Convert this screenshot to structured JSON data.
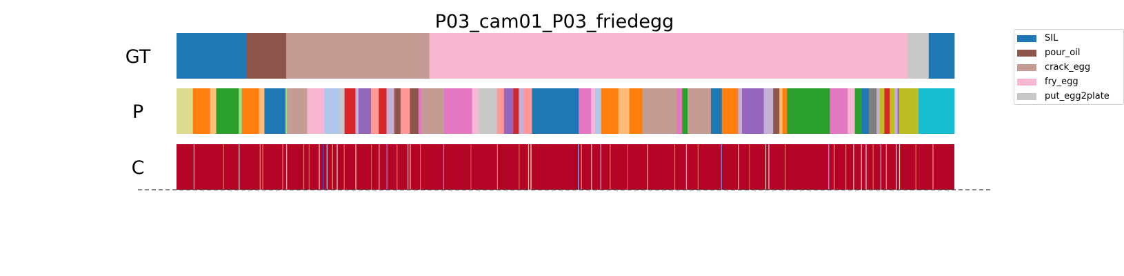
{
  "chart_data": {
    "type": "segmentation_timeline",
    "title": "P03_cam01_P03_friedegg",
    "x_range": [
      0,
      1000
    ],
    "rows": [
      {
        "label": "GT",
        "segments": [
          {
            "start": 0,
            "end": 90,
            "label": "SIL"
          },
          {
            "start": 90,
            "end": 141,
            "label": "pour_oil"
          },
          {
            "start": 141,
            "end": 325,
            "label": "crack_egg"
          },
          {
            "start": 325,
            "end": 940,
            "label": "fry_egg"
          },
          {
            "start": 940,
            "end": 967,
            "label": "put_egg2plate"
          },
          {
            "start": 967,
            "end": 1000,
            "label": "SIL"
          }
        ]
      },
      {
        "label": "P",
        "segments": [
          {
            "start": 0,
            "end": 21,
            "color": "#dbdb8d"
          },
          {
            "start": 21,
            "end": 43,
            "color": "#ff7f0e"
          },
          {
            "start": 43,
            "end": 51,
            "color": "#ffbb78"
          },
          {
            "start": 51,
            "end": 80,
            "color": "#2ca02c"
          },
          {
            "start": 80,
            "end": 84,
            "color": "#98df8a"
          },
          {
            "start": 84,
            "end": 106,
            "color": "#ff7f0e"
          },
          {
            "start": 106,
            "end": 113,
            "color": "#ffbb78"
          },
          {
            "start": 113,
            "end": 140,
            "color": "#1f77b4"
          },
          {
            "start": 140,
            "end": 142,
            "color": "#98df8a"
          },
          {
            "start": 142,
            "end": 168,
            "color": "#c49c94"
          },
          {
            "start": 168,
            "end": 190,
            "color": "#f7b6d2"
          },
          {
            "start": 190,
            "end": 210,
            "color": "#aec7e8"
          },
          {
            "start": 210,
            "end": 216,
            "color": "#c7c7c7"
          },
          {
            "start": 216,
            "end": 230,
            "color": "#d62728"
          },
          {
            "start": 230,
            "end": 234,
            "color": "#c5b0d5"
          },
          {
            "start": 234,
            "end": 250,
            "color": "#9467bd"
          },
          {
            "start": 250,
            "end": 260,
            "color": "#ff9896"
          },
          {
            "start": 260,
            "end": 270,
            "color": "#d62728"
          },
          {
            "start": 270,
            "end": 280,
            "color": "#c5b0d5"
          },
          {
            "start": 280,
            "end": 288,
            "color": "#8c564b"
          },
          {
            "start": 288,
            "end": 300,
            "color": "#ff9896"
          },
          {
            "start": 300,
            "end": 311,
            "color": "#8c564b"
          },
          {
            "start": 311,
            "end": 315,
            "color": "#e377c2"
          },
          {
            "start": 315,
            "end": 344,
            "color": "#c49c94"
          },
          {
            "start": 344,
            "end": 380,
            "color": "#e377c2"
          },
          {
            "start": 380,
            "end": 388,
            "color": "#f7b6d2"
          },
          {
            "start": 388,
            "end": 412,
            "color": "#c7c7c7"
          },
          {
            "start": 412,
            "end": 421,
            "color": "#ff9896"
          },
          {
            "start": 421,
            "end": 433,
            "color": "#9467bd"
          },
          {
            "start": 433,
            "end": 440,
            "color": "#d62728"
          },
          {
            "start": 440,
            "end": 446,
            "color": "#c5b0d5"
          },
          {
            "start": 446,
            "end": 457,
            "color": "#ff9896"
          },
          {
            "start": 457,
            "end": 517,
            "color": "#1f77b4"
          },
          {
            "start": 517,
            "end": 533,
            "color": "#e377c2"
          },
          {
            "start": 533,
            "end": 538,
            "color": "#f7b6d2"
          },
          {
            "start": 538,
            "end": 546,
            "color": "#aec7e8"
          },
          {
            "start": 546,
            "end": 568,
            "color": "#ff7f0e"
          },
          {
            "start": 568,
            "end": 582,
            "color": "#ffbb78"
          },
          {
            "start": 582,
            "end": 599,
            "color": "#ff7f0e"
          },
          {
            "start": 599,
            "end": 643,
            "color": "#c49c94"
          },
          {
            "start": 643,
            "end": 650,
            "color": "#e377c2"
          },
          {
            "start": 650,
            "end": 657,
            "color": "#2ca02c"
          },
          {
            "start": 657,
            "end": 687,
            "color": "#c49c94"
          },
          {
            "start": 687,
            "end": 701,
            "color": "#1f77b4"
          },
          {
            "start": 701,
            "end": 722,
            "color": "#ff7f0e"
          },
          {
            "start": 722,
            "end": 727,
            "color": "#c5b0d5"
          },
          {
            "start": 727,
            "end": 755,
            "color": "#9467bd"
          },
          {
            "start": 755,
            "end": 767,
            "color": "#c5b0d5"
          },
          {
            "start": 767,
            "end": 775,
            "color": "#8c564b"
          },
          {
            "start": 775,
            "end": 779,
            "color": "#ffbb78"
          },
          {
            "start": 779,
            "end": 785,
            "color": "#ff7f0e"
          },
          {
            "start": 785,
            "end": 840,
            "color": "#2ca02c"
          },
          {
            "start": 840,
            "end": 863,
            "color": "#e377c2"
          },
          {
            "start": 863,
            "end": 872,
            "color": "#f7b6d2"
          },
          {
            "start": 872,
            "end": 881,
            "color": "#2ca02c"
          },
          {
            "start": 881,
            "end": 890,
            "color": "#1f77b4"
          },
          {
            "start": 890,
            "end": 900,
            "color": "#7f7f7f"
          },
          {
            "start": 900,
            "end": 904,
            "color": "#c5b0d5"
          },
          {
            "start": 904,
            "end": 910,
            "color": "#bcbd22"
          },
          {
            "start": 910,
            "end": 917,
            "color": "#d62728"
          },
          {
            "start": 917,
            "end": 923,
            "color": "#bcbd22"
          },
          {
            "start": 923,
            "end": 927,
            "color": "#c5b0d5"
          },
          {
            "start": 927,
            "end": 929,
            "color": "#9467bd"
          },
          {
            "start": 929,
            "end": 954,
            "color": "#bcbd22"
          },
          {
            "start": 954,
            "end": 1000,
            "color": "#17becf"
          }
        ]
      },
      {
        "label": "C",
        "base_color": "#b40426",
        "stripes": [
          {
            "pos": 22,
            "color": "#f4c4ad",
            "w": 1.2
          },
          {
            "pos": 60,
            "color": "#e7745b",
            "w": 1.2
          },
          {
            "pos": 80,
            "color": "#d1d5db",
            "w": 1.2
          },
          {
            "pos": 107,
            "color": "#f4987a",
            "w": 1.2
          },
          {
            "pos": 110,
            "color": "#d65244",
            "w": 2
          },
          {
            "pos": 136,
            "color": "#e97a5f",
            "w": 1.2
          },
          {
            "pos": 141,
            "color": "#cfd9ea",
            "w": 1.2
          },
          {
            "pos": 163,
            "color": "#ee8468",
            "w": 1.2
          },
          {
            "pos": 170,
            "color": "#dc5d4a",
            "w": 1.2
          },
          {
            "pos": 183,
            "color": "#f1cdba",
            "w": 1.2
          },
          {
            "pos": 188,
            "color": "#3b4cc0",
            "w": 1.5
          },
          {
            "pos": 193,
            "color": "#c5d6f2",
            "w": 1.2
          },
          {
            "pos": 200,
            "color": "#f49a7b",
            "w": 1.2
          },
          {
            "pos": 206,
            "color": "#dddcdc",
            "w": 1.2
          },
          {
            "pos": 215,
            "color": "#e36c55",
            "w": 1.2
          },
          {
            "pos": 230,
            "color": "#f2cbb7",
            "w": 1.2
          },
          {
            "pos": 250,
            "color": "#dd5f4b",
            "w": 1.2
          },
          {
            "pos": 260,
            "color": "#f7ad90",
            "w": 1.2
          },
          {
            "pos": 270,
            "color": "#6f92f3",
            "w": 1.2
          },
          {
            "pos": 283,
            "color": "#e7745b",
            "w": 1.2
          },
          {
            "pos": 297,
            "color": "#dedcdb",
            "w": 1.2
          },
          {
            "pos": 300,
            "color": "#f6bea4",
            "w": 1.2
          },
          {
            "pos": 313,
            "color": "#e97a5f",
            "w": 1.2
          },
          {
            "pos": 343,
            "color": "#7a9df8",
            "w": 1.2
          },
          {
            "pos": 378,
            "color": "#d75445",
            "w": 1.2
          },
          {
            "pos": 412,
            "color": "#ee8468",
            "w": 1.2
          },
          {
            "pos": 440,
            "color": "#e36c55",
            "w": 1.2
          },
          {
            "pos": 452,
            "color": "#f7b89c",
            "w": 1.2
          },
          {
            "pos": 455,
            "color": "#f3c7b1",
            "w": 1.5
          },
          {
            "pos": 516,
            "color": "#8db0fe",
            "w": 1.2
          },
          {
            "pos": 520,
            "color": "#f4987a",
            "w": 1.2
          },
          {
            "pos": 533,
            "color": "#ead5c9",
            "w": 1.2
          },
          {
            "pos": 545,
            "color": "#cad8ef",
            "w": 1.2
          },
          {
            "pos": 557,
            "color": "#e97a5f",
            "w": 1.2
          },
          {
            "pos": 579,
            "color": "#dd5f4b",
            "w": 1.2
          },
          {
            "pos": 605,
            "color": "#f7ad90",
            "w": 1.2
          },
          {
            "pos": 640,
            "color": "#e36c55",
            "w": 1.2
          },
          {
            "pos": 655,
            "color": "#d1d5db",
            "w": 1.2
          },
          {
            "pos": 670,
            "color": "#e7745b",
            "w": 1.2
          },
          {
            "pos": 700,
            "color": "#6f92f3",
            "w": 1.2
          },
          {
            "pos": 722,
            "color": "#f6bea4",
            "w": 1.2
          },
          {
            "pos": 736,
            "color": "#dc5d4a",
            "w": 1.2
          },
          {
            "pos": 757,
            "color": "#f2cbb7",
            "w": 1.2
          },
          {
            "pos": 761,
            "color": "#cfd9ea",
            "w": 1.2
          },
          {
            "pos": 782,
            "color": "#ee8468",
            "w": 1.2
          },
          {
            "pos": 838,
            "color": "#8db0fe",
            "w": 1.2
          },
          {
            "pos": 845,
            "color": "#f4987a",
            "w": 1.2
          },
          {
            "pos": 860,
            "color": "#e97a5f",
            "w": 1.2
          },
          {
            "pos": 870,
            "color": "#dddcdc",
            "w": 1.2
          },
          {
            "pos": 880,
            "color": "#f4c4ad",
            "w": 1.2
          },
          {
            "pos": 886,
            "color": "#d1d5db",
            "w": 1.2
          },
          {
            "pos": 895,
            "color": "#e36c55",
            "w": 1.2
          },
          {
            "pos": 905,
            "color": "#cad8ef",
            "w": 1.2
          },
          {
            "pos": 912,
            "color": "#f7ad90",
            "w": 1.2
          },
          {
            "pos": 925,
            "color": "#c5d6f2",
            "w": 1.2
          },
          {
            "pos": 929,
            "color": "#f1cdba",
            "w": 1.2
          },
          {
            "pos": 950,
            "color": "#e7745b",
            "w": 1.2
          },
          {
            "pos": 972,
            "color": "#f49a7b",
            "w": 1.2
          }
        ]
      }
    ],
    "legend": [
      {
        "label": "SIL",
        "color": "#1f77b4"
      },
      {
        "label": "pour_oil",
        "color": "#8c564b"
      },
      {
        "label": "crack_egg",
        "color": "#c49c94"
      },
      {
        "label": "fry_egg",
        "color": "#f7b6d2"
      },
      {
        "label": "put_egg2plate",
        "color": "#c7c7c7"
      }
    ],
    "legend_placement": "upper-right, outside plot",
    "baseline_style": "dashed"
  }
}
